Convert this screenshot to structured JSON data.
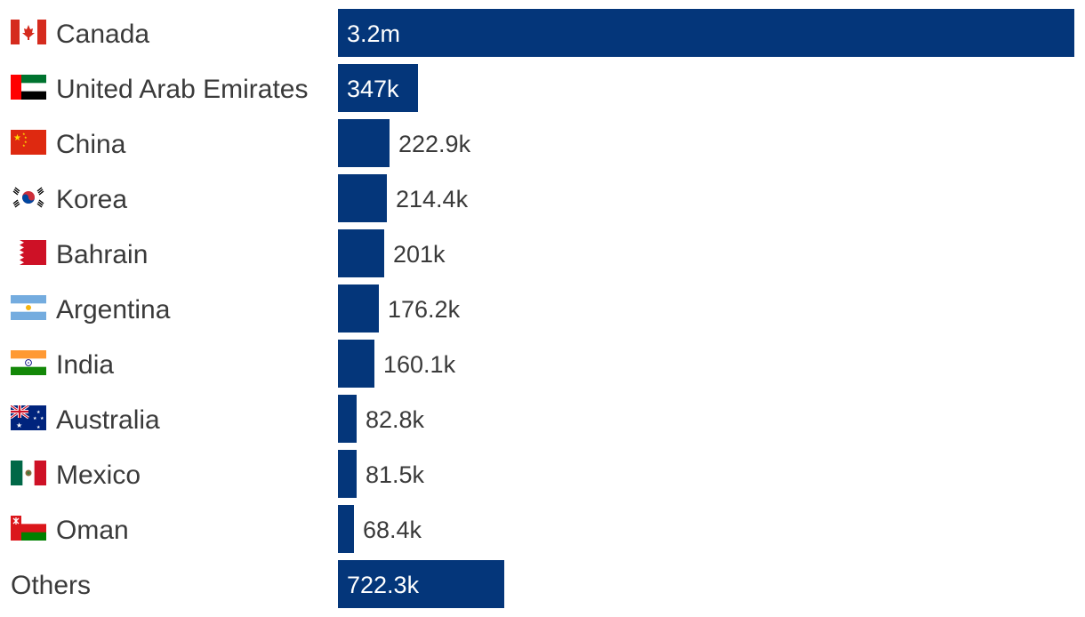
{
  "chart_data": {
    "type": "bar",
    "orientation": "horizontal",
    "categories": [
      "Canada",
      "United Arab Emirates",
      "China",
      "Korea",
      "Bahrain",
      "Argentina",
      "India",
      "Australia",
      "Mexico",
      "Oman",
      "Others"
    ],
    "values": [
      3200000,
      347000,
      222900,
      214400,
      201000,
      176200,
      160100,
      82800,
      81500,
      68400,
      722300
    ],
    "value_labels": [
      "3.2m",
      "347k",
      "222.9k",
      "214.4k",
      "201k",
      "176.2k",
      "160.1k",
      "82.8k",
      "81.5k",
      "68.4k",
      "722.3k"
    ],
    "flag_icons": [
      "canada-flag-icon",
      "uae-flag-icon",
      "china-flag-icon",
      "korea-flag-icon",
      "bahrain-flag-icon",
      "argentina-flag-icon",
      "india-flag-icon",
      "australia-flag-icon",
      "mexico-flag-icon",
      "oman-flag-icon",
      ""
    ],
    "bar_color": "#04367a",
    "title": "",
    "xlabel": "",
    "ylabel": "",
    "grid": false,
    "legend": "none"
  }
}
